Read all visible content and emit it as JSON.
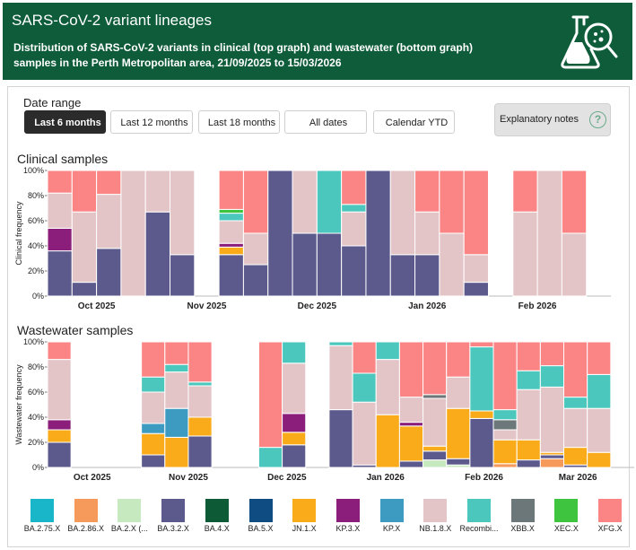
{
  "header": {
    "title": "SARS-CoV-2 variant lineages",
    "subtitle": "Distribution of SARS-CoV-2 variants in clinical (top graph) and wastewater (bottom graph) samples in the Perth Metropolitan area, 21/09/2025 to 15/03/2026",
    "icon": "lab-flask-magnifier-icon"
  },
  "controls": {
    "date_range_label": "Date range",
    "buttons": [
      "Last 6 months",
      "Last 12 months",
      "Last 18 months",
      "All dates",
      "Calendar YTD"
    ],
    "active_button": "Last 6 months",
    "notes_label": "Explanatory notes",
    "notes_icon": "?"
  },
  "clinical": {
    "section_title": "Clinical samples"
  },
  "wastewater": {
    "section_title": "Wastewater samples"
  },
  "colors": {
    "BA.2.75.X": "#19b5c8",
    "BA.2.86.X": "#f59a5a",
    "BA.2.X (...": "#c7e9c0",
    "BA.3.2.X": "#5c5a8c",
    "BA.4.X": "#0d5a36",
    "BA.5.X": "#0f4c81",
    "JN.1.X": "#f9ab19",
    "KP.3.X": "#8b1e7a",
    "KP.X": "#3d9bc1",
    "NB.1.8.X": "#e3c5c8",
    "Recombi...": "#4cc7bd",
    "XBB.X": "#6b7778",
    "XEC.X": "#3ec43e",
    "XFG.X": "#fb8585"
  },
  "legend": [
    "BA.2.75.X",
    "BA.2.86.X",
    "BA.2.X (...",
    "BA.3.2.X",
    "BA.4.X",
    "BA.5.X",
    "JN.1.X",
    "KP.3.X",
    "KP.X",
    "NB.1.8.X",
    "Recombi...",
    "XBB.X",
    "XEC.X",
    "XFG.X"
  ],
  "chart_data": [
    {
      "type": "bar",
      "stacked": true,
      "title": "Clinical samples",
      "ylabel": "Clinical frequency",
      "ylim": [
        0,
        100
      ],
      "yticks": [
        "0%",
        "20%",
        "40%",
        "60%",
        "80%",
        "100%"
      ],
      "xlim": [
        0,
        23
      ],
      "xticks": [
        {
          "label": "Oct 2025",
          "at": 2
        },
        {
          "label": "Nov 2025",
          "at": 6.5
        },
        {
          "label": "Dec 2025",
          "at": 11
        },
        {
          "label": "Jan 2026",
          "at": 15.5
        },
        {
          "label": "Feb 2026",
          "at": 20
        }
      ],
      "bars": [
        {
          "i": 0,
          "segments": [
            [
              "BA.3.2.X",
              36
            ],
            [
              "KP.3.X",
              18
            ],
            [
              "NB.1.8.X",
              28
            ],
            [
              "XFG.X",
              18
            ]
          ]
        },
        {
          "i": 1,
          "segments": [
            [
              "BA.3.2.X",
              11
            ],
            [
              "NB.1.8.X",
              56
            ],
            [
              "XFG.X",
              33
            ]
          ]
        },
        {
          "i": 2,
          "segments": [
            [
              "BA.3.2.X",
              38
            ],
            [
              "NB.1.8.X",
              43
            ],
            [
              "XFG.X",
              19
            ]
          ]
        },
        {
          "i": 3,
          "segments": [
            [
              "NB.1.8.X",
              100
            ]
          ]
        },
        {
          "i": 4,
          "segments": [
            [
              "BA.3.2.X",
              67
            ],
            [
              "NB.1.8.X",
              33
            ]
          ]
        },
        {
          "i": 5,
          "segments": [
            [
              "BA.3.2.X",
              33
            ],
            [
              "NB.1.8.X",
              67
            ]
          ]
        },
        {
          "i": 7,
          "segments": [
            [
              "BA.3.2.X",
              33
            ],
            [
              "JN.1.X",
              6
            ],
            [
              "KP.3.X",
              3
            ],
            [
              "NB.1.8.X",
              18
            ],
            [
              "Recombi...",
              6
            ],
            [
              "XEC.X",
              3
            ],
            [
              "XFG.X",
              31
            ]
          ]
        },
        {
          "i": 8,
          "segments": [
            [
              "BA.3.2.X",
              25
            ],
            [
              "NB.1.8.X",
              25
            ],
            [
              "XFG.X",
              50
            ]
          ]
        },
        {
          "i": 9,
          "segments": [
            [
              "BA.3.2.X",
              100
            ]
          ]
        },
        {
          "i": 10,
          "segments": [
            [
              "BA.3.2.X",
              50
            ],
            [
              "NB.1.8.X",
              50
            ]
          ]
        },
        {
          "i": 11,
          "segments": [
            [
              "BA.3.2.X",
              50
            ],
            [
              "Recombi...",
              50
            ]
          ]
        },
        {
          "i": 12,
          "segments": [
            [
              "BA.3.2.X",
              40
            ],
            [
              "NB.1.8.X",
              27
            ],
            [
              "Recombi...",
              6
            ],
            [
              "XFG.X",
              27
            ]
          ]
        },
        {
          "i": 13,
          "segments": [
            [
              "BA.3.2.X",
              100
            ]
          ]
        },
        {
          "i": 14,
          "segments": [
            [
              "BA.3.2.X",
              33
            ],
            [
              "NB.1.8.X",
              67
            ]
          ]
        },
        {
          "i": 15,
          "segments": [
            [
              "BA.3.2.X",
              33
            ],
            [
              "NB.1.8.X",
              34
            ],
            [
              "XFG.X",
              33
            ]
          ]
        },
        {
          "i": 16,
          "segments": [
            [
              "NB.1.8.X",
              50
            ],
            [
              "XFG.X",
              50
            ]
          ]
        },
        {
          "i": 17,
          "segments": [
            [
              "BA.3.2.X",
              11
            ],
            [
              "NB.1.8.X",
              22
            ],
            [
              "XFG.X",
              67
            ]
          ]
        },
        {
          "i": 19,
          "segments": [
            [
              "NB.1.8.X",
              67
            ],
            [
              "XFG.X",
              33
            ]
          ]
        },
        {
          "i": 20,
          "segments": [
            [
              "NB.1.8.X",
              100
            ]
          ]
        },
        {
          "i": 21,
          "segments": [
            [
              "NB.1.8.X",
              50
            ],
            [
              "XFG.X",
              50
            ]
          ]
        }
      ]
    },
    {
      "type": "bar",
      "stacked": true,
      "title": "Wastewater samples",
      "ylabel": "Wastewater frequency",
      "ylim": [
        0,
        100
      ],
      "yticks": [
        "0%",
        "20%",
        "40%",
        "60%",
        "80%",
        "100%"
      ],
      "xlim": [
        0,
        25
      ],
      "xticks": [
        {
          "label": "Oct 2025",
          "at": 1.9
        },
        {
          "label": "Nov 2025",
          "at": 6.0
        },
        {
          "label": "Dec 2025",
          "at": 10.2
        },
        {
          "label": "Jan 2026",
          "at": 14.4
        },
        {
          "label": "Feb 2026",
          "at": 18.6
        },
        {
          "label": "Mar 2026",
          "at": 22.6
        }
      ],
      "bars": [
        {
          "i": 0,
          "segments": [
            [
              "BA.3.2.X",
              20
            ],
            [
              "JN.1.X",
              10
            ],
            [
              "KP.3.X",
              8
            ],
            [
              "NB.1.8.X",
              48
            ],
            [
              "XFG.X",
              14
            ]
          ]
        },
        {
          "i": 4,
          "segments": [
            [
              "BA.3.2.X",
              10
            ],
            [
              "JN.1.X",
              17
            ],
            [
              "KP.X",
              8
            ],
            [
              "NB.1.8.X",
              25
            ],
            [
              "Recombi...",
              12
            ],
            [
              "XFG.X",
              28
            ]
          ]
        },
        {
          "i": 5,
          "segments": [
            [
              "JN.1.X",
              24
            ],
            [
              "KP.X",
              23
            ],
            [
              "NB.1.8.X",
              29
            ],
            [
              "Recombi...",
              6
            ],
            [
              "XFG.X",
              18
            ]
          ]
        },
        {
          "i": 6,
          "segments": [
            [
              "BA.3.2.X",
              25
            ],
            [
              "JN.1.X",
              15
            ],
            [
              "NB.1.8.X",
              25
            ],
            [
              "Recombi...",
              3
            ],
            [
              "XFG.X",
              32
            ]
          ]
        },
        {
          "i": 9,
          "segments": [
            [
              "Recombi...",
              16
            ],
            [
              "XFG.X",
              84
            ]
          ]
        },
        {
          "i": 10,
          "segments": [
            [
              "BA.3.2.X",
              18
            ],
            [
              "JN.1.X",
              10
            ],
            [
              "KP.3.X",
              15
            ],
            [
              "NB.1.8.X",
              40
            ],
            [
              "Recombi...",
              17
            ]
          ]
        },
        {
          "i": 12,
          "segments": [
            [
              "BA.3.2.X",
              46
            ],
            [
              "NB.1.8.X",
              51
            ],
            [
              "Recombi...",
              3
            ]
          ]
        },
        {
          "i": 13,
          "segments": [
            [
              "BA.3.2.X",
              2
            ],
            [
              "NB.1.8.X",
              50
            ],
            [
              "Recombi...",
              23
            ],
            [
              "XFG.X",
              25
            ]
          ]
        },
        {
          "i": 14,
          "segments": [
            [
              "JN.1.X",
              42
            ],
            [
              "NB.1.8.X",
              44
            ],
            [
              "Recombi...",
              14
            ]
          ]
        },
        {
          "i": 15,
          "segments": [
            [
              "BA.3.2.X",
              5
            ],
            [
              "JN.1.X",
              28
            ],
            [
              "KP.3.X",
              3
            ],
            [
              "NB.1.8.X",
              20
            ],
            [
              "XFG.X",
              44
            ]
          ]
        },
        {
          "i": 16,
          "segments": [
            [
              "BA.2.X (...",
              6
            ],
            [
              "BA.3.2.X",
              7
            ],
            [
              "JN.1.X",
              4
            ],
            [
              "NB.1.8.X",
              38
            ],
            [
              "XBB.X",
              3
            ],
            [
              "Recombi...",
              0
            ],
            [
              "XFG.X",
              42
            ]
          ]
        },
        {
          "i": 17,
          "segments": [
            [
              "BA.2.X (...",
              2
            ],
            [
              "BA.3.2.X",
              5
            ],
            [
              "JN.1.X",
              40
            ],
            [
              "NB.1.8.X",
              25
            ],
            [
              "XFG.X",
              28
            ]
          ]
        },
        {
          "i": 18,
          "segments": [
            [
              "BA.3.2.X",
              39
            ],
            [
              "JN.1.X",
              6
            ],
            [
              "Recombi...",
              51
            ],
            [
              "XFG.X",
              4
            ]
          ]
        },
        {
          "i": 19,
          "segments": [
            [
              "BA.2.86.X",
              3
            ],
            [
              "JN.1.X",
              19
            ],
            [
              "NB.1.8.X",
              8
            ],
            [
              "XBB.X",
              8
            ],
            [
              "Recombi...",
              8
            ],
            [
              "XFG.X",
              54
            ]
          ]
        },
        {
          "i": 20,
          "segments": [
            [
              "BA.3.2.X",
              6
            ],
            [
              "JN.1.X",
              16
            ],
            [
              "NB.1.8.X",
              40
            ],
            [
              "Recombi...",
              15
            ],
            [
              "XFG.X",
              23
            ]
          ]
        },
        {
          "i": 21,
          "segments": [
            [
              "BA.2.86.X",
              7
            ],
            [
              "BA.3.2.X",
              3
            ],
            [
              "JN.1.X",
              2
            ],
            [
              "NB.1.8.X",
              52
            ],
            [
              "Recombi...",
              17
            ],
            [
              "XFG.X",
              19
            ]
          ]
        },
        {
          "i": 22,
          "segments": [
            [
              "BA.3.2.X",
              2
            ],
            [
              "JN.1.X",
              14
            ],
            [
              "NB.1.8.X",
              31
            ],
            [
              "Recombi...",
              9
            ],
            [
              "XFG.X",
              44
            ]
          ]
        },
        {
          "i": 23,
          "segments": [
            [
              "JN.1.X",
              12
            ],
            [
              "NB.1.8.X",
              35
            ],
            [
              "Recombi...",
              27
            ],
            [
              "XFG.X",
              26
            ]
          ]
        }
      ]
    }
  ]
}
